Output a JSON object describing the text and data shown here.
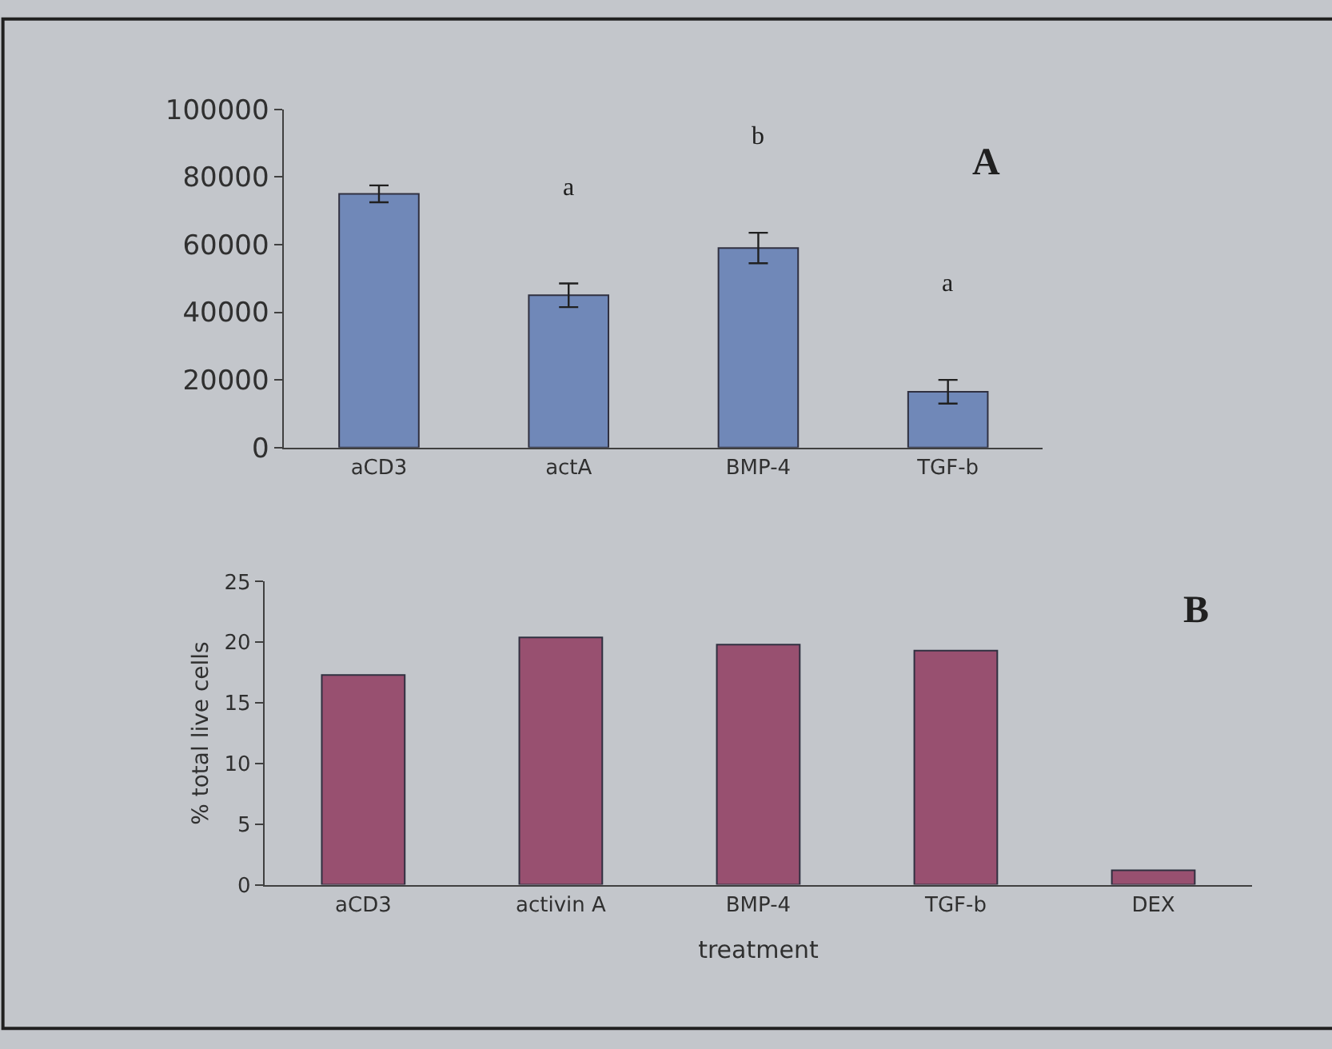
{
  "chart_data": [
    {
      "type": "bar",
      "title": "A",
      "categories": [
        "aCD3",
        "actA",
        "BMP-4",
        "TGF-b"
      ],
      "values": [
        75000,
        45000,
        59000,
        16500
      ],
      "errors": [
        2500,
        3500,
        4500,
        3500
      ],
      "color": "#7088b8",
      "ylim": [
        0,
        100000
      ],
      "yticks": [
        0,
        20000,
        40000,
        60000,
        80000,
        100000
      ],
      "annotations": [
        "a",
        "b",
        "a"
      ]
    },
    {
      "type": "bar",
      "title": "B",
      "categories": [
        "aCD3",
        "activin A",
        "BMP-4",
        "TGF-b",
        "DEX"
      ],
      "values": [
        17.3,
        20.4,
        19.8,
        19.3,
        1.2
      ],
      "color": "#985070",
      "ylim": [
        0,
        25
      ],
      "yticks": [
        0,
        5,
        10,
        15,
        20,
        25
      ],
      "xlabel": "treatment",
      "ylabel": "% total live cells"
    }
  ]
}
